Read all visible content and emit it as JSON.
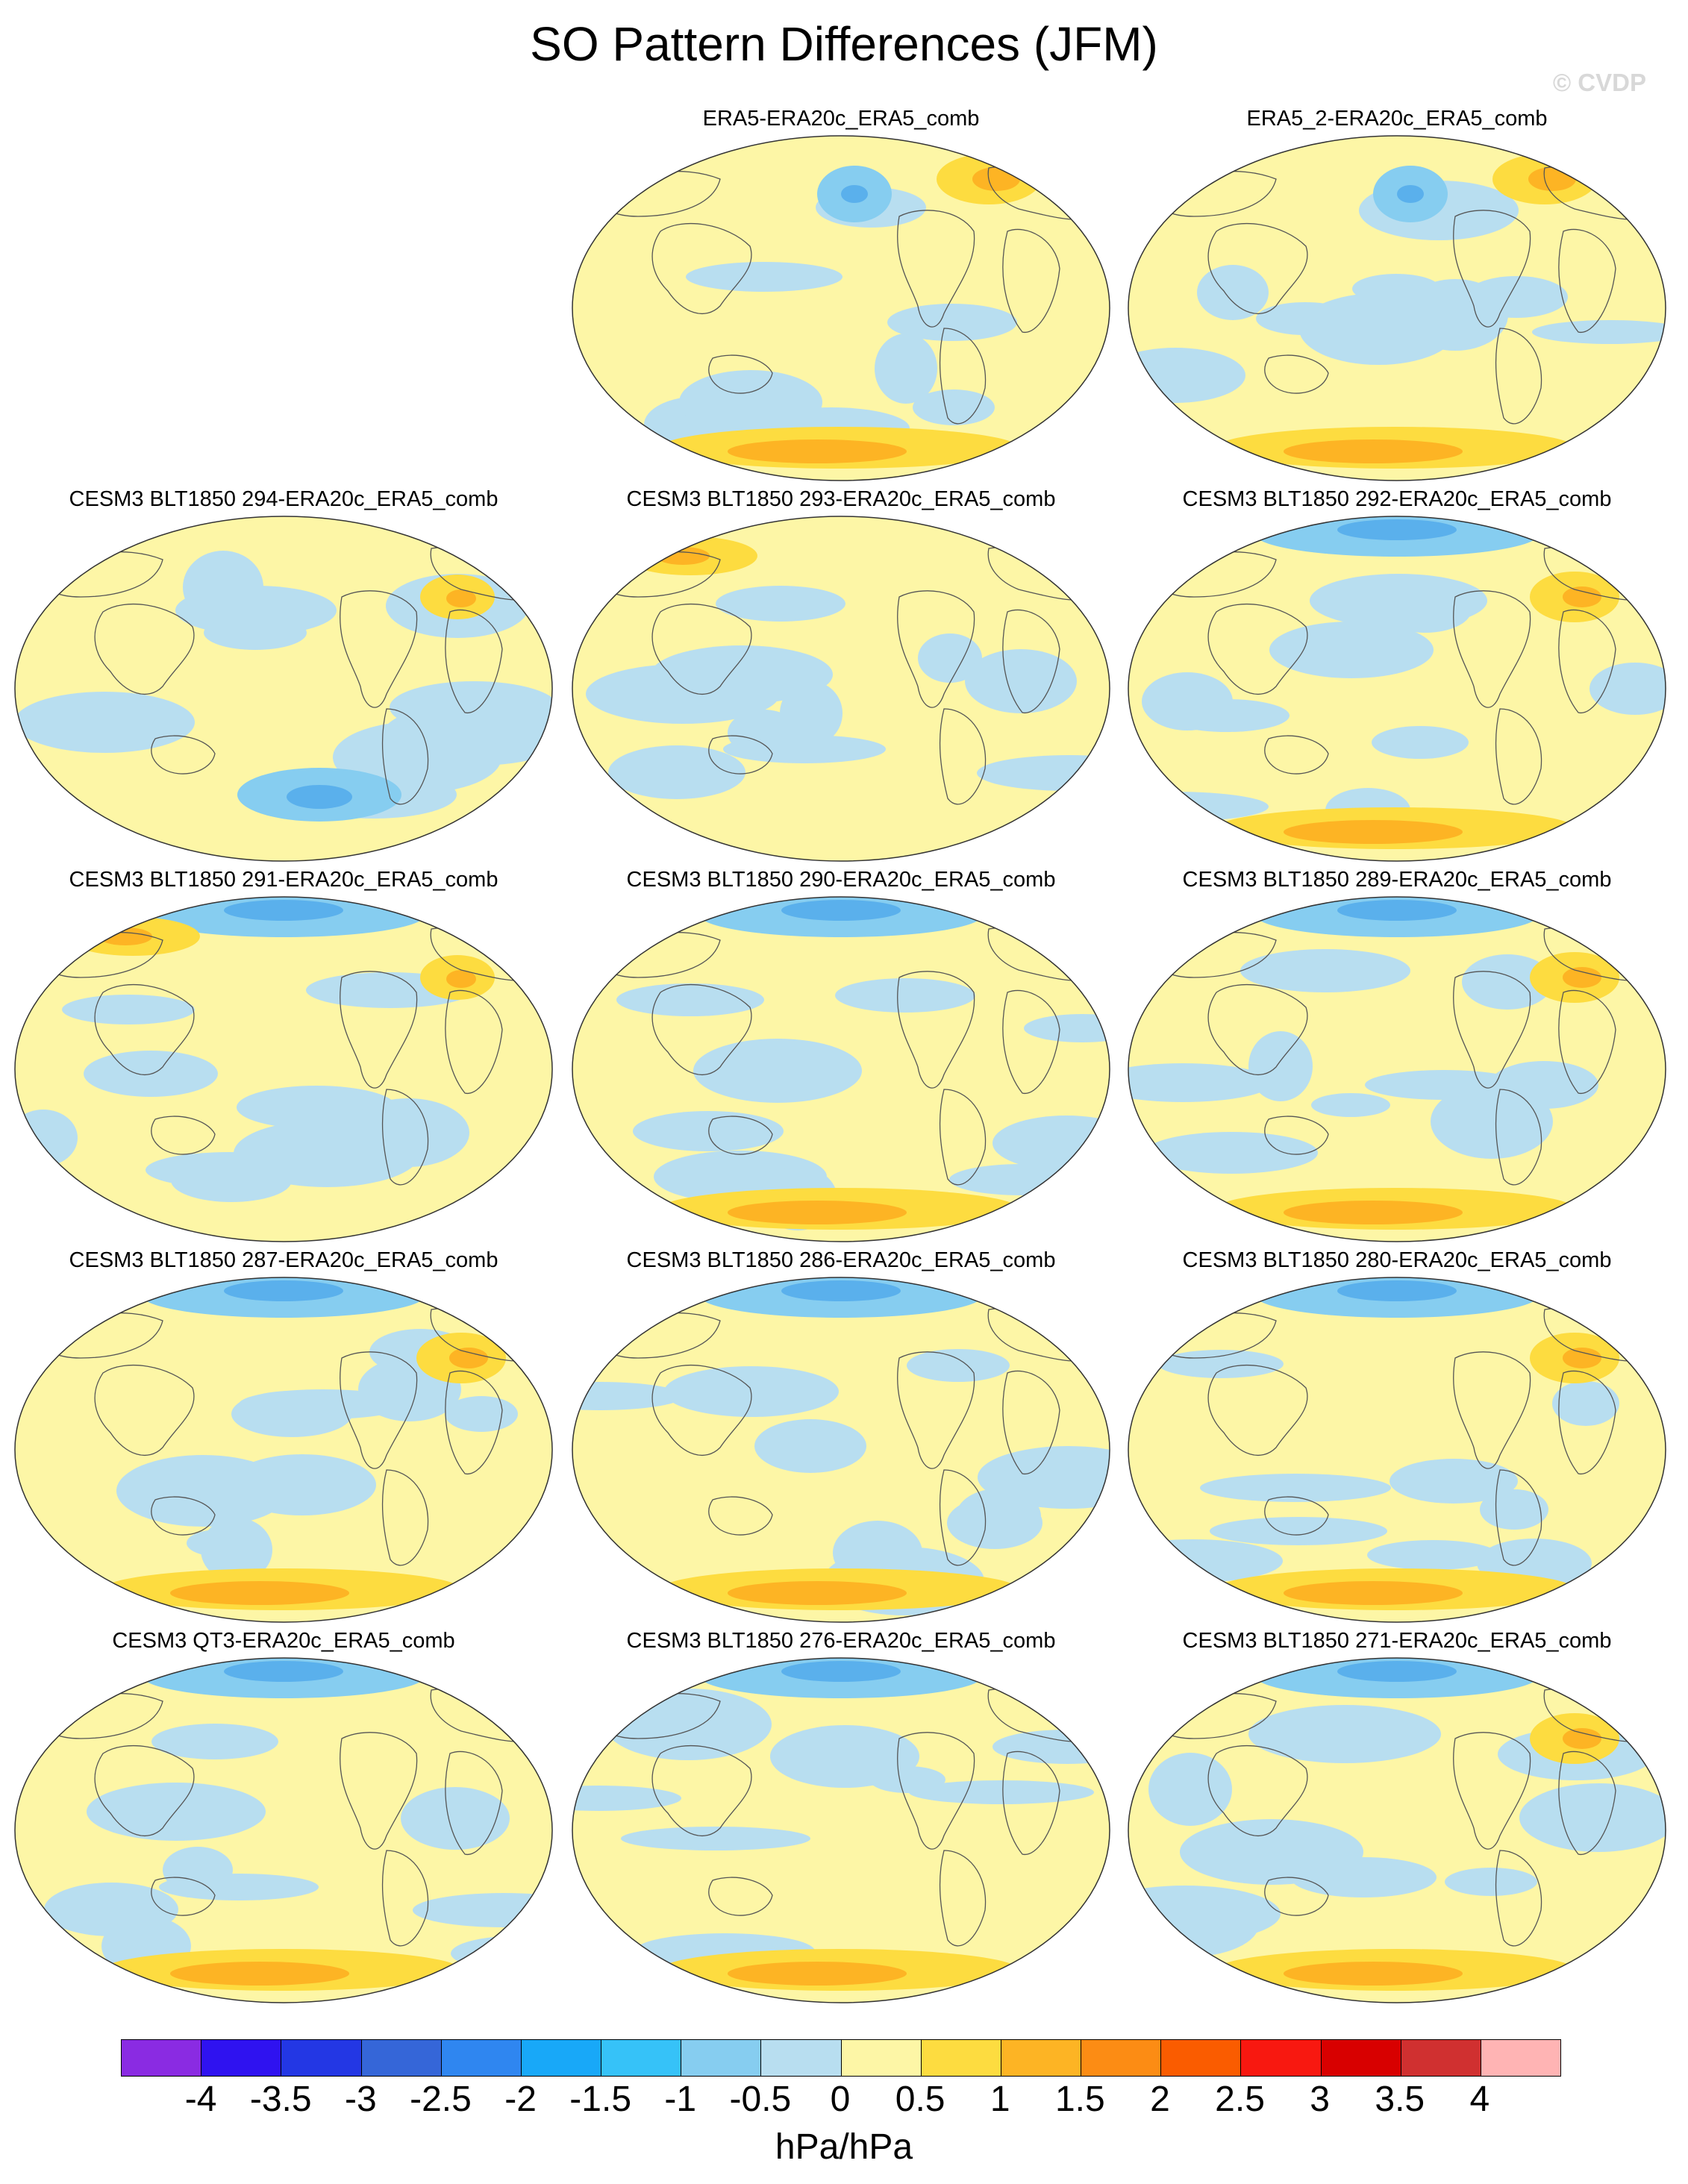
{
  "title": "SO Pattern Differences (JFM)",
  "watermark": "© CVDP",
  "panels": [
    {
      "title": "ERA5-ERA20c_ERA5_comb",
      "dominant": "pale-yellow",
      "features": [
        "orange-eurasia",
        "blue-north-pacific",
        "orange-antarctic-margin"
      ]
    },
    {
      "title": "ERA5_2-ERA20c_ERA5_comb",
      "dominant": "pale-yellow",
      "features": [
        "orange-eurasia",
        "blue-north-pacific",
        "orange-antarctic-margin"
      ]
    },
    {
      "title": "CESM3 BLT1850 294-ERA20c_ERA5_comb",
      "dominant": "pale-yellow",
      "features": [
        "blue-southern-ocean",
        "orange-north-atlantic"
      ]
    },
    {
      "title": "CESM3 BLT1850 293-ERA20c_ERA5_comb",
      "dominant": "pale-yellow",
      "features": [
        "orange-siberia",
        "blue-tropics"
      ]
    },
    {
      "title": "CESM3 BLT1850 292-ERA20c_ERA5_comb",
      "dominant": "pale-yellow",
      "features": [
        "blue-arctic",
        "orange-europe",
        "orange-antarctic-margin"
      ]
    },
    {
      "title": "CESM3 BLT1850 291-ERA20c_ERA5_comb",
      "dominant": "pale-yellow",
      "features": [
        "blue-arctic",
        "orange-siberia",
        "orange-north-atlantic"
      ]
    },
    {
      "title": "CESM3 BLT1850 290-ERA20c_ERA5_comb",
      "dominant": "pale-yellow",
      "features": [
        "blue-arctic",
        "orange-antarctic-margin"
      ]
    },
    {
      "title": "CESM3 BLT1850 289-ERA20c_ERA5_comb",
      "dominant": "pale-yellow",
      "features": [
        "blue-arctic",
        "orange-europe",
        "orange-antarctic-margin"
      ]
    },
    {
      "title": "CESM3 BLT1850 287-ERA20c_ERA5_comb",
      "dominant": "pale-yellow",
      "features": [
        "blue-arctic",
        "orange-europe",
        "orange-antarctic-margin"
      ]
    },
    {
      "title": "CESM3 BLT1850 286-ERA20c_ERA5_comb",
      "dominant": "pale-yellow",
      "features": [
        "blue-arctic",
        "orange-antarctic-margin"
      ]
    },
    {
      "title": "CESM3 BLT1850 280-ERA20c_ERA5_comb",
      "dominant": "pale-yellow",
      "features": [
        "blue-arctic",
        "orange-europe",
        "orange-antarctic-margin"
      ]
    },
    {
      "title": "CESM3 QT3-ERA20c_ERA5_comb",
      "dominant": "pale-yellow",
      "features": [
        "blue-arctic",
        "orange-antarctic-margin"
      ]
    },
    {
      "title": "CESM3 BLT1850 276-ERA20c_ERA5_comb",
      "dominant": "pale-yellow",
      "features": [
        "blue-arctic",
        "orange-antarctic-margin"
      ]
    },
    {
      "title": "CESM3 BLT1850 271-ERA20c_ERA5_comb",
      "dominant": "pale-yellow",
      "features": [
        "blue-arctic",
        "orange-europe",
        "orange-antarctic-margin"
      ]
    }
  ],
  "colorbar": {
    "colors": [
      "#8a2be2",
      "#2f12f0",
      "#2337e4",
      "#3566d8",
      "#2f86f0",
      "#18a8f8",
      "#36c2f8",
      "#86cdf0",
      "#b8def0",
      "#fdf6a6",
      "#fddc40",
      "#fdb424",
      "#fc8c14",
      "#fa5c00",
      "#f81810",
      "#d80000",
      "#d03030",
      "#ffb4b4"
    ],
    "labels": [
      "-4",
      "-3.5",
      "-3",
      "-2.5",
      "-2",
      "-1.5",
      "-1",
      "-0.5",
      "0",
      "0.5",
      "1",
      "1.5",
      "2",
      "2.5",
      "3",
      "3.5",
      "4"
    ],
    "units": "hPa/hPa"
  }
}
